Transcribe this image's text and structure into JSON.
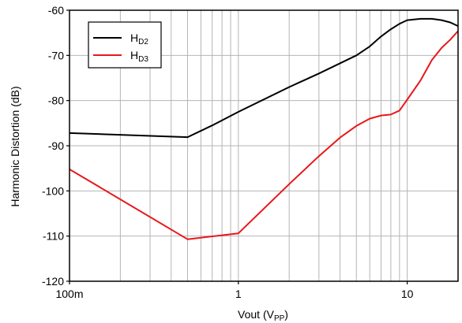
{
  "chart_data": {
    "type": "line",
    "title": "",
    "xlabel": "Vout (V",
    "xlabel_sub": "PP",
    "xlabel_suffix": ")",
    "ylabel": "Harmonic Distortion (dB)",
    "xscale": "log",
    "xlim": [
      0.1,
      20
    ],
    "ylim": [
      -120,
      -60
    ],
    "x_ticks": [
      {
        "value": 0.1,
        "label": "100m"
      },
      {
        "value": 1,
        "label": "1"
      },
      {
        "value": 10,
        "label": "10"
      }
    ],
    "y_ticks": [
      -60,
      -70,
      -80,
      -90,
      -100,
      -110,
      -120
    ],
    "y_tick_labels": [
      "-60",
      "-70",
      "-80",
      "-90",
      "-100",
      "-110",
      "-120"
    ],
    "grid": true,
    "legend_position": "top-left",
    "series": [
      {
        "name": "H",
        "name_sub": "D2",
        "color": "#000000",
        "x": [
          0.1,
          0.5,
          0.7,
          1,
          2,
          3,
          5,
          6,
          7,
          8,
          9,
          10,
          12,
          14,
          16,
          18,
          20
        ],
        "y": [
          -87.2,
          -88.1,
          -85.5,
          -82.5,
          -77,
          -74,
          -70,
          -68,
          -65.8,
          -64.2,
          -63,
          -62.2,
          -61.9,
          -61.9,
          -62.2,
          -62.7,
          -63.5
        ]
      },
      {
        "name": "H",
        "name_sub": "D3",
        "color": "#e8171b",
        "x": [
          0.1,
          0.5,
          1,
          2,
          3,
          4,
          5,
          6,
          7,
          8,
          9,
          10,
          12,
          14,
          16,
          18,
          20
        ],
        "y": [
          -95.2,
          -110.7,
          -109.4,
          -98.5,
          -92.3,
          -88.2,
          -85.6,
          -84,
          -83.3,
          -83.1,
          -82.2,
          -79.8,
          -75.5,
          -71,
          -68.3,
          -66.5,
          -64.6
        ]
      }
    ]
  }
}
